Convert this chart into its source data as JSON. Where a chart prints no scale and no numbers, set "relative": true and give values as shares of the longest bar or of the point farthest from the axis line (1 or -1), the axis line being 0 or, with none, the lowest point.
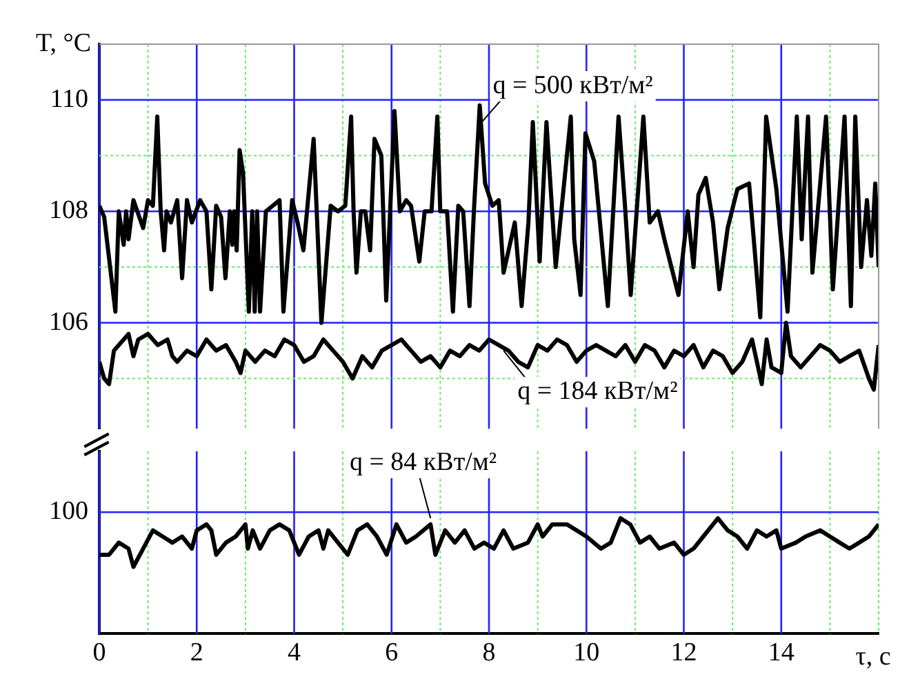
{
  "chart_data": [
    {
      "type": "line",
      "ylabel": "T, °C",
      "xlim": [
        0,
        16
      ],
      "xticks": [
        0,
        {
          "value": 1,
          "label": null
        },
        2,
        {
          "value": 3,
          "label": null
        },
        4,
        {
          "value": 5,
          "label": null
        },
        6,
        {
          "value": 7,
          "label": null
        },
        8,
        {
          "value": 9,
          "label": null
        },
        10,
        {
          "value": 11,
          "label": null
        },
        12,
        {
          "value": 13,
          "label": null
        },
        14,
        {
          "value": 15,
          "label": null
        },
        {
          "value": 16,
          "label": null
        }
      ],
      "ylim": [
        104.1,
        111
      ],
      "yticks": [
        {
          "value": 105,
          "label": null
        },
        106,
        {
          "value": 107,
          "label": null
        },
        108,
        {
          "value": 109,
          "label": null
        },
        110
      ],
      "tick_labels": "y",
      "grid": true,
      "legend": false,
      "marker": "none",
      "annotations": [
        {
          "text": "q = 500 кВт/м²",
          "x": 7.85,
          "y": 109.6
        },
        {
          "text": "q = 184 кВт/м²",
          "x": 8.3,
          "y": 105.5
        }
      ],
      "series": [
        {
          "color": "#000000",
          "x": [
            0,
            0.1,
            0.33,
            0.4,
            0.5,
            0.55,
            0.6,
            0.7,
            0.9,
            1.0,
            1.1,
            1.19,
            1.26,
            1.33,
            1.38,
            1.47,
            1.6,
            1.7,
            1.8,
            1.9,
            2.07,
            2.2,
            2.3,
            2.4,
            2.5,
            2.59,
            2.68,
            2.73,
            2.77,
            2.82,
            2.88,
            2.95,
            3.07,
            3.14,
            3.19,
            3.24,
            3.3,
            3.42,
            3.7,
            3.78,
            3.96,
            4.07,
            4.19,
            4.4,
            4.56,
            4.75,
            4.9,
            5.05,
            5.17,
            5.22,
            5.28,
            5.37,
            5.46,
            5.56,
            5.65,
            5.79,
            5.89,
            6.06,
            6.17,
            6.3,
            6.4,
            6.57,
            6.68,
            6.82,
            6.94,
            7.0,
            7.14,
            7.26,
            7.37,
            7.47,
            7.6,
            7.69,
            7.81,
            7.92,
            8.07,
            8.2,
            8.3,
            8.53,
            8.67,
            8.81,
            8.9,
            9.04,
            9.18,
            9.37,
            9.68,
            9.75,
            9.88,
            9.98,
            10.16,
            10.3,
            10.44,
            10.66,
            10.8,
            10.91,
            11.17,
            11.3,
            11.47,
            11.6,
            11.89,
            12.08,
            12.2,
            12.3,
            12.45,
            12.6,
            12.73,
            12.9,
            13.1,
            13.34,
            13.57,
            13.69,
            13.9,
            14.13,
            14.32,
            14.42,
            14.55,
            14.64,
            14.92,
            15.06,
            15.3,
            15.43,
            15.52,
            15.64,
            15.76,
            15.85,
            15.93,
            16
          ],
          "values": [
            108.1,
            107.9,
            106.2,
            108,
            107.4,
            108,
            107.5,
            108.2,
            107.7,
            108.2,
            108.1,
            109.7,
            108,
            107.3,
            108,
            107.8,
            108.2,
            106.8,
            108.2,
            107.8,
            108.2,
            108,
            106.6,
            108.1,
            107.9,
            106.8,
            108,
            107.4,
            108,
            107.3,
            109.1,
            108.7,
            106.2,
            108,
            106.2,
            108,
            106.2,
            108,
            108.2,
            106.2,
            108.2,
            107.8,
            107.3,
            109.3,
            106,
            108.1,
            108,
            108.1,
            109.7,
            108,
            106.9,
            108,
            108,
            107.3,
            109.3,
            109,
            106.4,
            109.8,
            108,
            108.2,
            108.1,
            107.1,
            108,
            108,
            109.7,
            108,
            108,
            106.2,
            108.1,
            108,
            106.3,
            108,
            109.9,
            108.5,
            108.1,
            108.2,
            106.9,
            107.8,
            106.3,
            107.8,
            109.6,
            107.1,
            109.6,
            107,
            109.7,
            107.5,
            106.5,
            109.4,
            108.9,
            107.6,
            106.3,
            109.7,
            108,
            106.5,
            109.7,
            107.8,
            108,
            107.5,
            106.5,
            108,
            107,
            108.3,
            108.6,
            107.8,
            106.6,
            107.7,
            108.4,
            108.5,
            106.1,
            109.7,
            108.4,
            106.2,
            109.7,
            107.5,
            109.7,
            106.9,
            109.7,
            106.6,
            109.7,
            106.3,
            109.7,
            107,
            108.2,
            107.2,
            108.5,
            107
          ]
        },
        {
          "color": "#000000",
          "x": [
            0,
            0.1,
            0.2,
            0.3,
            0.5,
            0.6,
            0.7,
            0.8,
            1.0,
            1.2,
            1.4,
            1.5,
            1.6,
            1.8,
            2.0,
            2.2,
            2.4,
            2.6,
            2.8,
            2.9,
            3.0,
            3.2,
            3.4,
            3.6,
            3.8,
            4.0,
            4.2,
            4.4,
            4.6,
            4.8,
            5.0,
            5.2,
            5.4,
            5.6,
            5.8,
            6.0,
            6.2,
            6.4,
            6.6,
            6.8,
            7.0,
            7.2,
            7.4,
            7.6,
            7.8,
            8.0,
            8.2,
            8.4,
            8.6,
            8.8,
            9.0,
            9.2,
            9.4,
            9.6,
            9.8,
            10.0,
            10.2,
            10.4,
            10.6,
            10.8,
            11.0,
            11.2,
            11.4,
            11.6,
            11.8,
            12.0,
            12.2,
            12.4,
            12.6,
            12.8,
            13.0,
            13.2,
            13.4,
            13.6,
            13.7,
            13.8,
            14.0,
            14.1,
            14.2,
            14.4,
            14.6,
            14.8,
            15.0,
            15.2,
            15.4,
            15.6,
            15.8,
            15.9,
            16
          ],
          "values": [
            105.3,
            105.0,
            104.9,
            105.5,
            105.7,
            105.8,
            105.4,
            105.7,
            105.8,
            105.6,
            105.7,
            105.4,
            105.3,
            105.5,
            105.4,
            105.7,
            105.5,
            105.6,
            105.3,
            105.1,
            105.5,
            105.3,
            105.5,
            105.4,
            105.7,
            105.6,
            105.3,
            105.4,
            105.7,
            105.5,
            105.3,
            105.0,
            105.4,
            105.2,
            105.5,
            105.6,
            105.7,
            105.5,
            105.3,
            105.4,
            105.2,
            105.5,
            105.4,
            105.6,
            105.5,
            105.7,
            105.6,
            105.5,
            105.3,
            105.2,
            105.6,
            105.5,
            105.7,
            105.6,
            105.3,
            105.5,
            105.6,
            105.5,
            105.4,
            105.6,
            105.3,
            105.6,
            105.5,
            105.2,
            105.5,
            105.4,
            105.6,
            105.2,
            105.5,
            105.4,
            105.1,
            105.3,
            105.7,
            104.9,
            105.7,
            105.2,
            105.1,
            106.0,
            105.4,
            105.2,
            105.4,
            105.6,
            105.5,
            105.3,
            105.4,
            105.5,
            105.0,
            104.8,
            105.6
          ]
        }
      ]
    },
    {
      "type": "line",
      "xlabel": "τ, с",
      "xlim": [
        0,
        16
      ],
      "xticks": [
        0,
        {
          "value": 1,
          "label": null
        },
        2,
        {
          "value": 3,
          "label": null
        },
        4,
        {
          "value": 5,
          "label": null
        },
        6,
        {
          "value": 7,
          "label": null
        },
        8,
        {
          "value": 9,
          "label": null
        },
        10,
        {
          "value": 11,
          "label": null
        },
        12,
        {
          "value": 13,
          "label": null
        },
        14,
        {
          "value": 15,
          "label": null
        },
        {
          "value": 16,
          "label": null
        }
      ],
      "relative": true,
      "ref_lines": [
        {
          "axis": "y",
          "value": 1.053,
          "color": "#2222ff"
        }
      ],
      "grid": "x",
      "legend": false,
      "marker": "none",
      "annotations": [
        "100",
        {
          "text": "q = 84 кВт/м²",
          "x": 6.8,
          "y": 1
        }
      ],
      "series": [
        {
          "color": "#000000",
          "x": [
            0,
            0.2,
            0.4,
            0.6,
            0.7,
            0.9,
            1.1,
            1.3,
            1.5,
            1.7,
            1.9,
            2.0,
            2.2,
            2.3,
            2.4,
            2.6,
            2.8,
            3.0,
            3.05,
            3.15,
            3.3,
            3.5,
            3.7,
            3.9,
            4.1,
            4.3,
            4.5,
            4.6,
            4.7,
            4.9,
            5.1,
            5.3,
            5.5,
            5.7,
            5.9,
            6.1,
            6.3,
            6.5,
            6.8,
            6.9,
            7.1,
            7.3,
            7.5,
            7.7,
            7.9,
            8.1,
            8.3,
            8.5,
            8.8,
            9.0,
            9.1,
            9.3,
            9.6,
            9.8,
            10.0,
            10.3,
            10.5,
            10.7,
            10.9,
            11.1,
            11.3,
            11.5,
            11.8,
            12.0,
            12.2,
            12.4,
            12.7,
            12.9,
            13.1,
            13.3,
            13.5,
            13.7,
            13.9,
            14.0,
            14.3,
            14.5,
            14.8,
            15.0,
            15.2,
            15.4,
            15.6,
            15.8,
            16
          ],
          "values": [
            0.684,
            0.684,
            0.789,
            0.737,
            0.579,
            0.737,
            0.895,
            0.842,
            0.789,
            0.842,
            0.737,
            0.895,
            0.947,
            0.895,
            0.684,
            0.789,
            0.842,
            0.947,
            0.737,
            0.895,
            0.737,
            0.895,
            0.947,
            0.895,
            0.684,
            0.842,
            0.895,
            0.737,
            0.895,
            0.789,
            0.684,
            0.895,
            0.947,
            0.842,
            0.684,
            0.947,
            0.789,
            0.842,
            0.947,
            0.684,
            0.895,
            0.789,
            0.895,
            0.737,
            0.789,
            0.737,
            0.895,
            0.737,
            0.789,
            0.947,
            0.842,
            0.947,
            0.947,
            0.895,
            0.842,
            0.737,
            0.789,
            1,
            0.947,
            0.789,
            0.842,
            0.737,
            0.789,
            0.684,
            0.737,
            0.842,
            1,
            0.895,
            0.842,
            0.737,
            0.895,
            0.842,
            0.895,
            0.737,
            0.789,
            0.842,
            0.895,
            0.842,
            0.789,
            0.737,
            0.789,
            0.842,
            0.947
          ]
        }
      ]
    }
  ]
}
